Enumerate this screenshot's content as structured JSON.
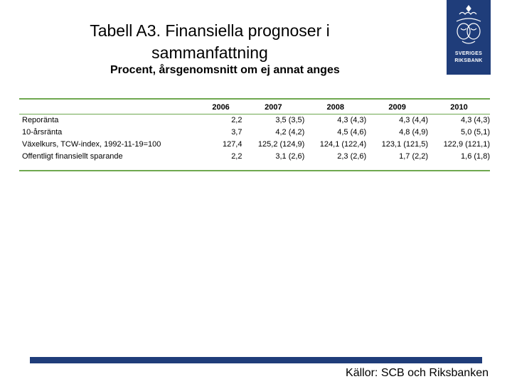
{
  "title_line1": "Tabell A3. Finansiella prognoser i",
  "title_line2": "sammanfattning",
  "subtitle": "Procent, årsgenomsnitt om ej annat anges",
  "logo": {
    "text_line1": "SVERIGES",
    "text_line2": "RIKSBANK",
    "color": "#1f3d7a"
  },
  "table": {
    "columns": [
      "",
      "2006",
      "2007",
      "2008",
      "2009",
      "2010"
    ],
    "rows": [
      {
        "label": "Reporänta",
        "values": [
          "2,2",
          "3,5 (3,5)",
          "4,3 (4,3)",
          "4,3 (4,4)",
          "4,3 (4,3)"
        ]
      },
      {
        "label": "10-årsränta",
        "values": [
          "3,7",
          "4,2 (4,2)",
          "4,5 (4,6)",
          "4,8 (4,9)",
          "5,0 (5,1)"
        ]
      },
      {
        "label": "Växelkurs, TCW-index, 1992-11-19=100",
        "values": [
          "127,4",
          "125,2 (124,9)",
          "124,1 (122,4)",
          "123,1 (121,5)",
          "122,9 (121,1)"
        ]
      },
      {
        "label": "Offentligt finansiellt sparande",
        "values": [
          "2,2",
          "3,1 (2,6)",
          "2,3 (2,6)",
          "1,7 (2,2)",
          "1,6 (1,8)"
        ]
      }
    ]
  },
  "source": "Källor: SCB och Riksbanken",
  "colors": {
    "accent_rule": "#6fa84f",
    "brand_blue": "#1f3d7a"
  }
}
